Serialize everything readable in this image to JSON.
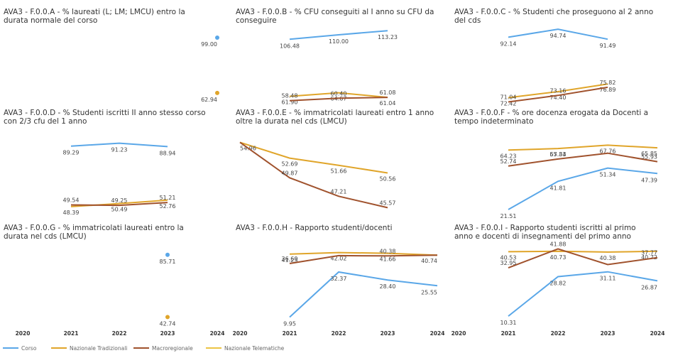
{
  "colors": {
    "corso": "#5aa7e8",
    "nazionale_tradizionali": "#e0a52a",
    "macroregionale": "#a0522d",
    "nazionale_telematiche": "#ecc444"
  },
  "x_ticks": [
    "2020",
    "2021",
    "2022",
    "2023",
    "2024"
  ],
  "legend": [
    {
      "key": "corso",
      "label": "Corso"
    },
    {
      "key": "nazionale_tradizionali",
      "label": "Nazionale Tradizionali"
    },
    {
      "key": "macroregionale",
      "label": "Macroregionale"
    },
    {
      "key": "nazionale_telematiche",
      "label": "Nazionale Telematiche"
    }
  ],
  "chart_data": [
    {
      "type": "line",
      "title_lines": [
        "AVA3 - F.0.0.A - % laureati (L; LM; LMCU) entro la",
        "durata normale del corso"
      ],
      "x": [
        2020,
        2021,
        2022,
        2023,
        2024
      ],
      "ylim": [
        55,
        105
      ],
      "series": [
        {
          "key": "corso",
          "name": "Corso",
          "values": [
            null,
            null,
            null,
            null,
            99.0
          ],
          "labels": [
            "",
            "",
            "",
            "",
            "99.00"
          ]
        },
        {
          "key": "nazionale_tradizionali",
          "name": "Nazionale Tradizionali",
          "values": [
            null,
            null,
            null,
            null,
            62.94
          ],
          "labels": [
            "",
            "",
            "",
            "",
            "62.94"
          ]
        }
      ]
    },
    {
      "type": "line",
      "title_lines": [
        "AVA3 - F.0.0.B - % CFU conseguiti al I anno su CFU da",
        "conseguire"
      ],
      "x": [
        2020,
        2021,
        2022,
        2023,
        2024
      ],
      "ylim": [
        55,
        115
      ],
      "series": [
        {
          "key": "corso",
          "name": "Corso",
          "values": [
            null,
            106.48,
            110.0,
            113.23,
            null
          ],
          "labels": [
            "",
            "106.48",
            "110.00",
            "113.23",
            ""
          ]
        },
        {
          "key": "nazionale_tradizionali",
          "name": "Nazionale Tradizionali",
          "values": [
            null,
            61.9,
            64.67,
            61.04,
            null
          ],
          "labels": [
            "",
            "61.90",
            "64.67",
            "61.04",
            ""
          ]
        },
        {
          "key": "macroregionale",
          "name": "Macroregionale",
          "values": [
            null,
            58.48,
            60.4,
            61.08,
            null
          ],
          "labels": [
            "",
            "58.48",
            "60.40",
            "61.08",
            ""
          ]
        }
      ]
    },
    {
      "type": "line",
      "title_lines": [
        "AVA3 - F.0.0.C - % Studenti che proseguono al 2 anno",
        "del cds"
      ],
      "x": [
        2020,
        2021,
        2022,
        2023,
        2024
      ],
      "ylim": [
        70,
        95
      ],
      "series": [
        {
          "key": "corso",
          "name": "Corso",
          "values": [
            null,
            92.14,
            94.74,
            91.49,
            null
          ],
          "labels": [
            "",
            "92.14",
            "94.74",
            "91.49",
            ""
          ]
        },
        {
          "key": "nazionale_tradizionali",
          "name": "Nazionale Tradizionali",
          "values": [
            null,
            72.42,
            74.4,
            76.89,
            null
          ],
          "labels": [
            "",
            "72.42",
            "74.40",
            "76.89",
            ""
          ]
        },
        {
          "key": "macroregionale",
          "name": "Macroregionale",
          "values": [
            null,
            71.04,
            73.16,
            75.82,
            null
          ],
          "labels": [
            "",
            "71.04",
            "73.16",
            "75.82",
            ""
          ]
        }
      ]
    },
    {
      "type": "line",
      "title_lines": [
        "AVA3 - F.0.0.D - % Studenti iscritti II anno stesso corso",
        "con 2/3 cfu del 1 anno"
      ],
      "x": [
        2020,
        2021,
        2022,
        2023,
        2024
      ],
      "ylim": [
        45,
        92
      ],
      "series": [
        {
          "key": "corso",
          "name": "Corso",
          "values": [
            null,
            89.29,
            91.23,
            88.94,
            null
          ],
          "labels": [
            "",
            "89.29",
            "91.23",
            "88.94",
            ""
          ]
        },
        {
          "key": "nazionale_tradizionali",
          "name": "Nazionale Tradizionali",
          "values": [
            null,
            48.39,
            50.49,
            52.76,
            null
          ],
          "labels": [
            "",
            "48.39",
            "50.49",
            "52.76",
            ""
          ]
        },
        {
          "key": "macroregionale",
          "name": "Macroregionale",
          "values": [
            null,
            49.54,
            49.25,
            51.21,
            null
          ],
          "labels": [
            "",
            "49.54",
            "49.25",
            "51.21",
            ""
          ]
        }
      ]
    },
    {
      "type": "line",
      "title_lines": [
        "AVA3 - F.0.0.E - % immatricolati laureati entro 1 anno",
        "oltre la durata nel cds (LMCU)"
      ],
      "x": [
        2020,
        2021,
        2022,
        2023,
        2024
      ],
      "ylim": [
        45,
        55
      ],
      "series": [
        {
          "key": "nazionale_tradizionali",
          "name": "Nazionale Tradizionali",
          "values": [
            54.96,
            52.69,
            51.66,
            50.56,
            null
          ],
          "labels": [
            "54.96",
            "52.69",
            "51.66",
            "50.56",
            ""
          ]
        },
        {
          "key": "macroregionale",
          "name": "Macroregionale",
          "values": [
            54.96,
            49.87,
            47.21,
            45.57,
            null
          ],
          "labels": [
            "",
            "49.87",
            "47.21",
            "45.57",
            ""
          ]
        }
      ]
    },
    {
      "type": "line",
      "title_lines": [
        "AVA3 - F.0.0.F - % ore docenza erogata da Docenti a",
        "tempo indeterminato"
      ],
      "x": [
        2020,
        2021,
        2022,
        2023,
        2024
      ],
      "ylim": [
        20,
        70
      ],
      "series": [
        {
          "key": "corso",
          "name": "Corso",
          "values": [
            null,
            21.51,
            41.81,
            51.34,
            47.39
          ],
          "labels": [
            "",
            "21.51",
            "41.81",
            "51.34",
            "47.39"
          ]
        },
        {
          "key": "nazionale_tradizionali",
          "name": "Nazionale Tradizionali",
          "values": [
            null,
            64.23,
            65.34,
            67.76,
            65.85
          ],
          "labels": [
            "",
            "64.23",
            "65.34",
            "67.76",
            "65.85"
          ]
        },
        {
          "key": "macroregionale",
          "name": "Macroregionale",
          "values": [
            null,
            52.74,
            57.83,
            62.0,
            55.93
          ],
          "labels": [
            "",
            "52.74",
            "57.83",
            "",
            "55.93"
          ]
        }
      ]
    },
    {
      "type": "line",
      "title_lines": [
        "AVA3 - F.0.0.G - % immatricolati laureati entro la",
        "durata nel cds (LMCU)"
      ],
      "x": [
        2020,
        2021,
        2022,
        2023,
        2024
      ],
      "ylim": [
        40,
        90
      ],
      "series": [
        {
          "key": "corso",
          "name": "Corso",
          "values": [
            null,
            null,
            null,
            85.71,
            null
          ],
          "labels": [
            "",
            "",
            "",
            "85.71",
            ""
          ]
        },
        {
          "key": "nazionale_tradizionali",
          "name": "Nazionale Tradizionali",
          "values": [
            null,
            null,
            null,
            42.74,
            null
          ],
          "labels": [
            "",
            "",
            "",
            "42.74",
            ""
          ]
        }
      ]
    },
    {
      "type": "line",
      "title_lines": [
        "AVA3 - F.0.0.H - Rapporto studenti/docenti"
      ],
      "x": [
        2020,
        2021,
        2022,
        2023,
        2024
      ],
      "ylim": [
        8,
        44
      ],
      "series": [
        {
          "key": "corso",
          "name": "Corso",
          "values": [
            null,
            9.95,
            32.37,
            28.4,
            25.55
          ],
          "labels": [
            "",
            "9.95",
            "32.37",
            "28.40",
            "25.55"
          ]
        },
        {
          "key": "nazionale_tradizionali",
          "name": "Nazionale Tradizionali",
          "values": [
            null,
            41.23,
            42.02,
            41.66,
            40.74
          ],
          "labels": [
            "",
            "41.23",
            "42.02",
            "41.66",
            "40.74"
          ]
        },
        {
          "key": "macroregionale",
          "name": "Macroregionale",
          "values": [
            null,
            36.6,
            40.5,
            40.38,
            40.74
          ],
          "labels": [
            "",
            "36.60",
            "",
            "40.38",
            ""
          ]
        }
      ]
    },
    {
      "type": "line",
      "title_lines": [
        "AVA3 - F.0.0.I - Rapporto studenti iscritti al primo",
        "anno e docenti di insegnamenti del primo anno"
      ],
      "x": [
        2020,
        2021,
        2022,
        2023,
        2024
      ],
      "ylim": [
        8,
        42
      ],
      "series": [
        {
          "key": "corso",
          "name": "Corso",
          "values": [
            null,
            10.31,
            28.82,
            31.11,
            26.87
          ],
          "labels": [
            "",
            "10.31",
            "28.82",
            "31.11",
            "26.87"
          ]
        },
        {
          "key": "nazionale_tradizionali",
          "name": "Nazionale Tradizionali",
          "values": [
            null,
            40.53,
            40.73,
            40.38,
            40.72
          ],
          "labels": [
            "",
            "40.53",
            "40.73",
            "40.38",
            "40.72"
          ]
        },
        {
          "key": "macroregionale",
          "name": "Macroregionale",
          "values": [
            null,
            32.95,
            41.88,
            34.5,
            37.77
          ],
          "labels": [
            "",
            "32.95",
            "41.88",
            "",
            "37.77"
          ]
        }
      ]
    }
  ]
}
